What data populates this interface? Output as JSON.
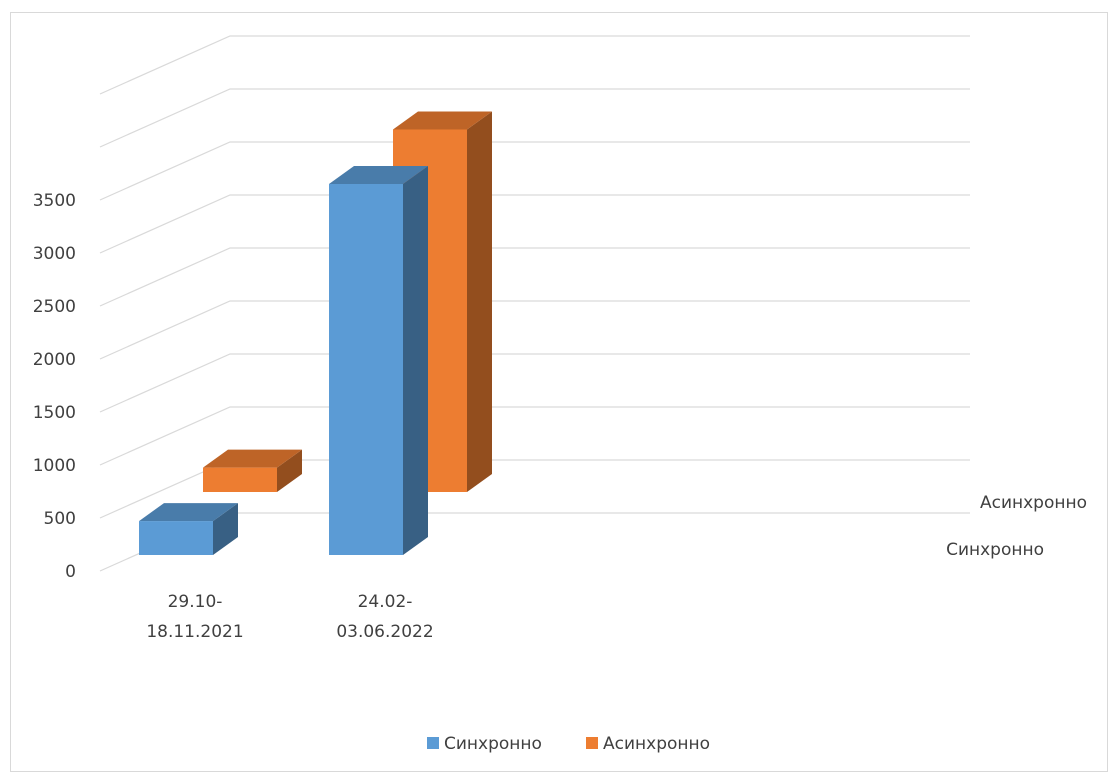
{
  "chart_data": {
    "type": "bar",
    "subtype": "3d-clustered-column",
    "title": "",
    "xlabel": "",
    "ylabel": "",
    "categories": [
      [
        "29.10-",
        "18.11.2021"
      ],
      [
        "24.02-",
        "03.06.2022"
      ]
    ],
    "series": [
      {
        "name": "Синхронно",
        "values": [
          320,
          3500
        ],
        "color": "#5b9bd5"
      },
      {
        "name": "Асинхронно",
        "values": [
          230,
          3420
        ],
        "color": "#ed7d31"
      }
    ],
    "ylim": [
      0,
      3500
    ],
    "yticks": [
      "0",
      "500",
      "1000",
      "1500",
      "2000",
      "2500",
      "3000",
      "3500"
    ],
    "depth_axis_labels": [
      "Асинхронно",
      "Синхронно"
    ],
    "grid": true,
    "legend": {
      "position": "bottom",
      "entries": [
        "Синхронно",
        "Асинхронно"
      ]
    }
  }
}
